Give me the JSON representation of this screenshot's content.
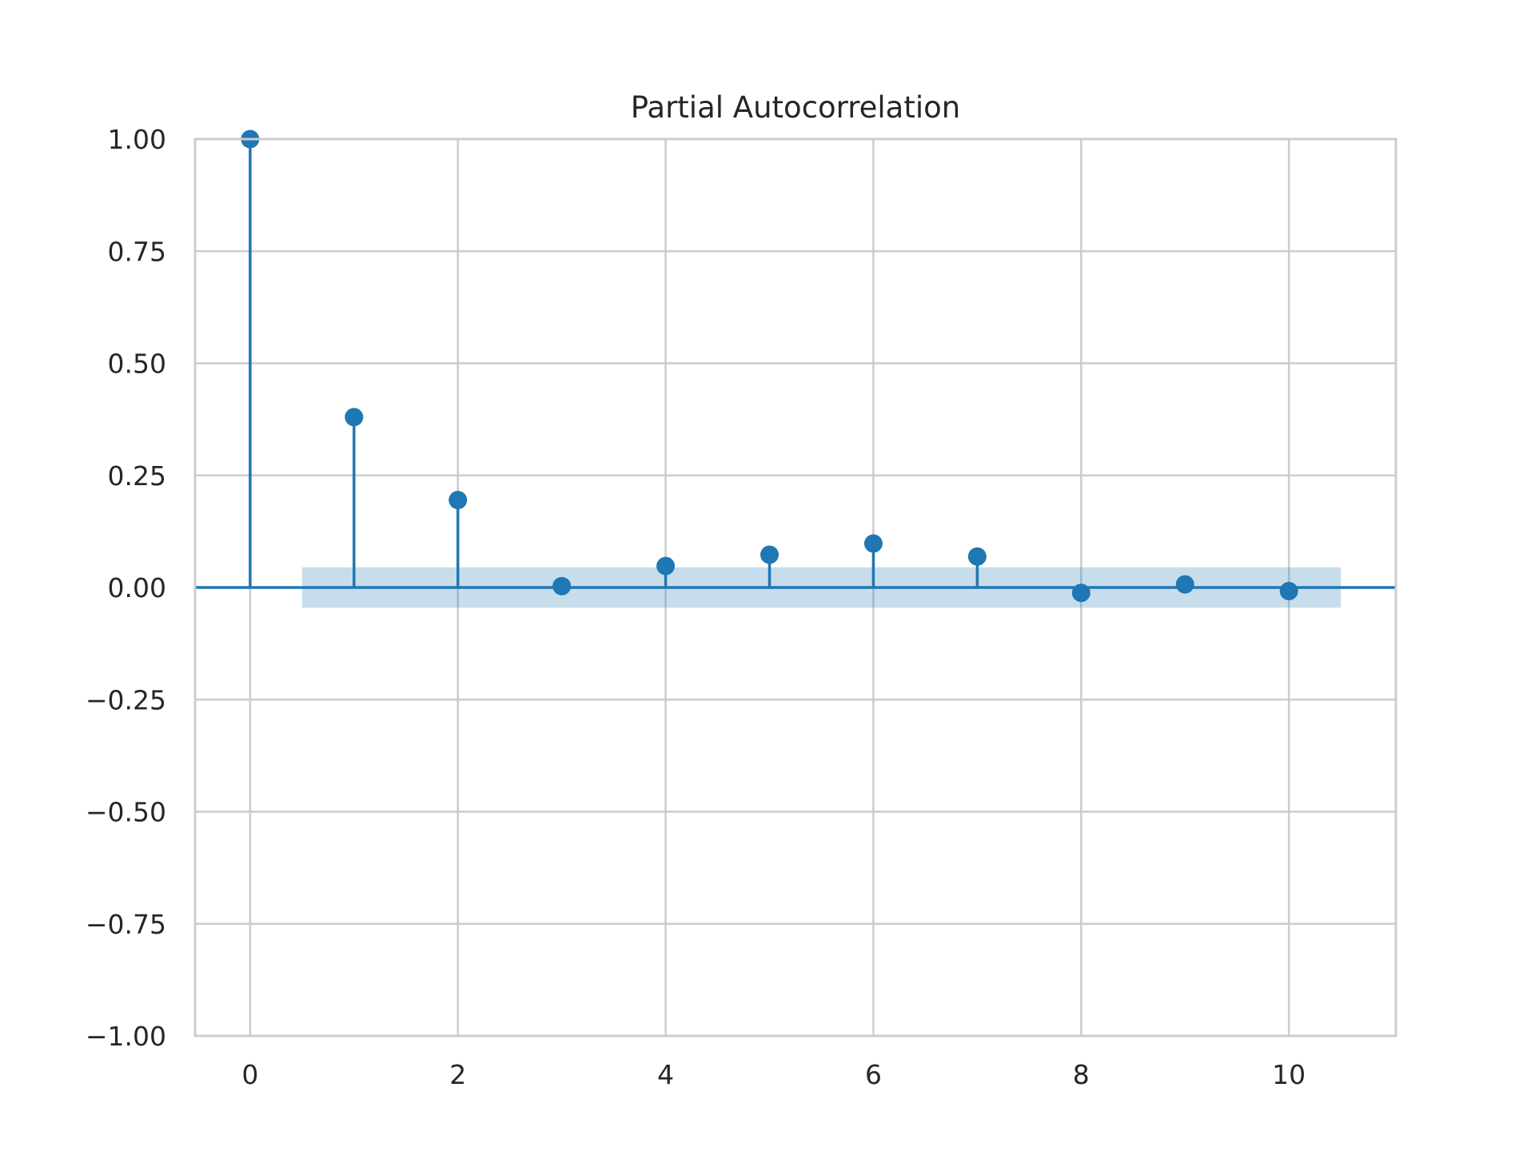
{
  "chart_data": {
    "type": "stem",
    "title": "Partial Autocorrelation",
    "xlabel": "",
    "ylabel": "",
    "x": [
      0,
      1,
      2,
      3,
      4,
      5,
      6,
      7,
      8,
      9,
      10
    ],
    "values": [
      1.0,
      0.38,
      0.195,
      0.003,
      0.048,
      0.073,
      0.098,
      0.069,
      -0.012,
      0.007,
      -0.008
    ],
    "confidence_band": {
      "x_range": [
        0.5,
        10.5
      ],
      "upper": 0.045,
      "lower": -0.045
    },
    "xlim": [
      -0.53,
      11.03
    ],
    "ylim": [
      -1.0,
      1.0
    ],
    "xticks": [
      0,
      2,
      4,
      6,
      8,
      10
    ],
    "xtick_labels": [
      "0",
      "2",
      "4",
      "6",
      "8",
      "10"
    ],
    "yticks": [
      -1.0,
      -0.75,
      -0.5,
      -0.25,
      0.0,
      0.25,
      0.5,
      0.75,
      1.0
    ],
    "ytick_labels": [
      "−1.00",
      "−0.75",
      "−0.50",
      "−0.25",
      "0.00",
      "0.25",
      "0.50",
      "0.75",
      "1.00"
    ],
    "grid": true,
    "colors": {
      "series": "#1f77b4",
      "band": "#1f77b4",
      "grid": "#cccccc",
      "frame": "#cccccc",
      "text": "#262626"
    }
  }
}
